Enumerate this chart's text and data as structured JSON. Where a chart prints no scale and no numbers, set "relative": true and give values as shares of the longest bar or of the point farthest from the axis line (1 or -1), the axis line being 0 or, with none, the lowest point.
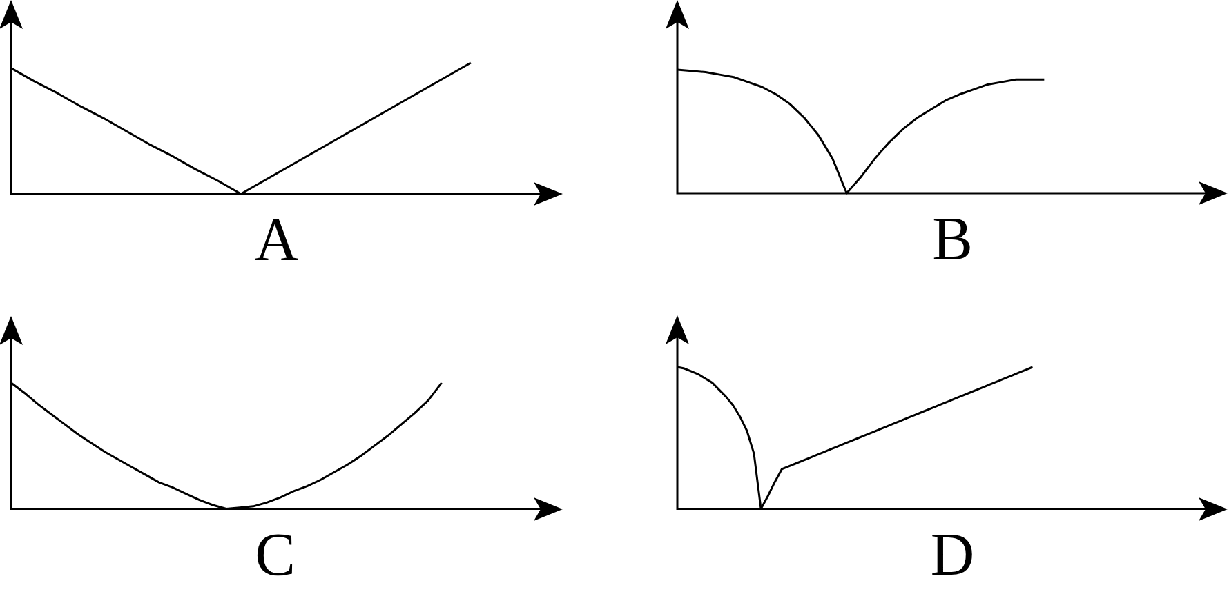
{
  "chart_data": [
    {
      "type": "line",
      "relative": true,
      "xlabel": "A",
      "color": "#000000",
      "categories": [
        null,
        null,
        null,
        null,
        null,
        null,
        null,
        null,
        null,
        null,
        null,
        null,
        null,
        null,
        null,
        null,
        null,
        null,
        null,
        null,
        null,
        null,
        null,
        null,
        null
      ],
      "values": [
        0.96,
        0.86,
        0.77,
        0.67,
        0.58,
        0.48,
        0.38,
        0.29,
        0.19,
        0.1,
        0,
        0.1,
        0.2,
        0.3,
        0.4,
        0.5,
        0.6,
        0.7,
        0.8,
        0.9,
        1,
        null,
        null,
        null,
        null
      ]
    },
    {
      "type": "line",
      "relative": true,
      "xlabel": "B",
      "color": "#000000",
      "categories": [
        null,
        null,
        null,
        null,
        null,
        null,
        null,
        null,
        null,
        null,
        null,
        null,
        null,
        null,
        null,
        null,
        null,
        null,
        null,
        null,
        null,
        null,
        null,
        null,
        null,
        null,
        null,
        null,
        null,
        null,
        null,
        null,
        null,
        null,
        null,
        null,
        null,
        null,
        null,
        null
      ],
      "values": [
        1,
        0.99,
        0.98,
        0.96,
        0.94,
        0.9,
        0.86,
        0.8,
        0.72,
        0.61,
        0.47,
        0.28,
        0,
        0.13,
        0.28,
        0.41,
        0.52,
        0.61,
        0.68,
        0.75,
        0.8,
        0.84,
        0.88,
        0.9,
        0.92,
        0.92,
        0.92,
        null,
        null,
        null,
        null,
        null,
        null,
        null,
        null,
        null,
        null,
        null,
        null,
        null
      ]
    },
    {
      "type": "line",
      "relative": true,
      "xlabel": "C",
      "color": "#000000",
      "categories": [
        null,
        null,
        null,
        null,
        null,
        null,
        null,
        null,
        null,
        null,
        null,
        null,
        null,
        null,
        null,
        null,
        null,
        null,
        null,
        null,
        null,
        null,
        null,
        null,
        null,
        null,
        null,
        null,
        null,
        null,
        null,
        null,
        null,
        null,
        null,
        null,
        null,
        null,
        null,
        null,
        null,
        null
      ],
      "values": [
        1,
        0.92,
        0.83,
        0.75,
        0.67,
        0.59,
        0.52,
        0.45,
        0.39,
        0.33,
        0.27,
        0.21,
        0.17,
        0.12,
        0.07,
        0.03,
        0,
        0.01,
        0.02,
        0.05,
        0.09,
        0.14,
        0.18,
        0.23,
        0.29,
        0.35,
        0.42,
        0.5,
        0.58,
        0.67,
        0.76,
        0.86,
        1,
        null,
        null,
        null,
        null,
        null,
        null,
        null,
        null,
        null
      ]
    },
    {
      "type": "line",
      "relative": true,
      "xlabel": "D",
      "color": "#000000",
      "categories": [
        null,
        null,
        null,
        null,
        null,
        null,
        null,
        null,
        null,
        null,
        null,
        null,
        null,
        null,
        null,
        null,
        null,
        null,
        null,
        null,
        null,
        null,
        null,
        null,
        null,
        null,
        null,
        null,
        null,
        null,
        null,
        null,
        null,
        null,
        null,
        null,
        null,
        null,
        null,
        null,
        null,
        null,
        null,
        null,
        null,
        null,
        null,
        null,
        null,
        null,
        null,
        null,
        null,
        null,
        null,
        null,
        null,
        null,
        null,
        null,
        null,
        null,
        null,
        null,
        null,
        null,
        null,
        null,
        null,
        null,
        null,
        null,
        null,
        null,
        null,
        null,
        null,
        null,
        null,
        null
      ],
      "values": [
        1,
        0.99,
        0.97,
        0.95,
        0.92,
        0.89,
        0.84,
        0.79,
        0.73,
        0.65,
        0.55,
        0.39,
        0,
        0.09,
        0.19,
        0.28,
        0.3,
        0.32,
        0.34,
        0.36,
        0.38,
        0.4,
        0.42,
        0.44,
        0.46,
        0.48,
        0.5,
        0.52,
        0.54,
        0.56,
        0.58,
        0.6,
        0.62,
        0.64,
        0.66,
        0.68,
        0.7,
        0.72,
        0.74,
        0.76,
        0.78,
        0.8,
        0.82,
        0.84,
        0.86,
        0.88,
        0.9,
        0.92,
        0.94,
        0.96,
        0.98,
        1,
        null,
        null,
        null,
        null,
        null,
        null,
        null,
        null,
        null,
        null,
        null,
        null,
        null,
        null,
        null,
        null,
        null,
        null,
        null,
        null,
        null,
        null,
        null,
        null,
        null,
        null,
        null,
        null
      ]
    }
  ]
}
